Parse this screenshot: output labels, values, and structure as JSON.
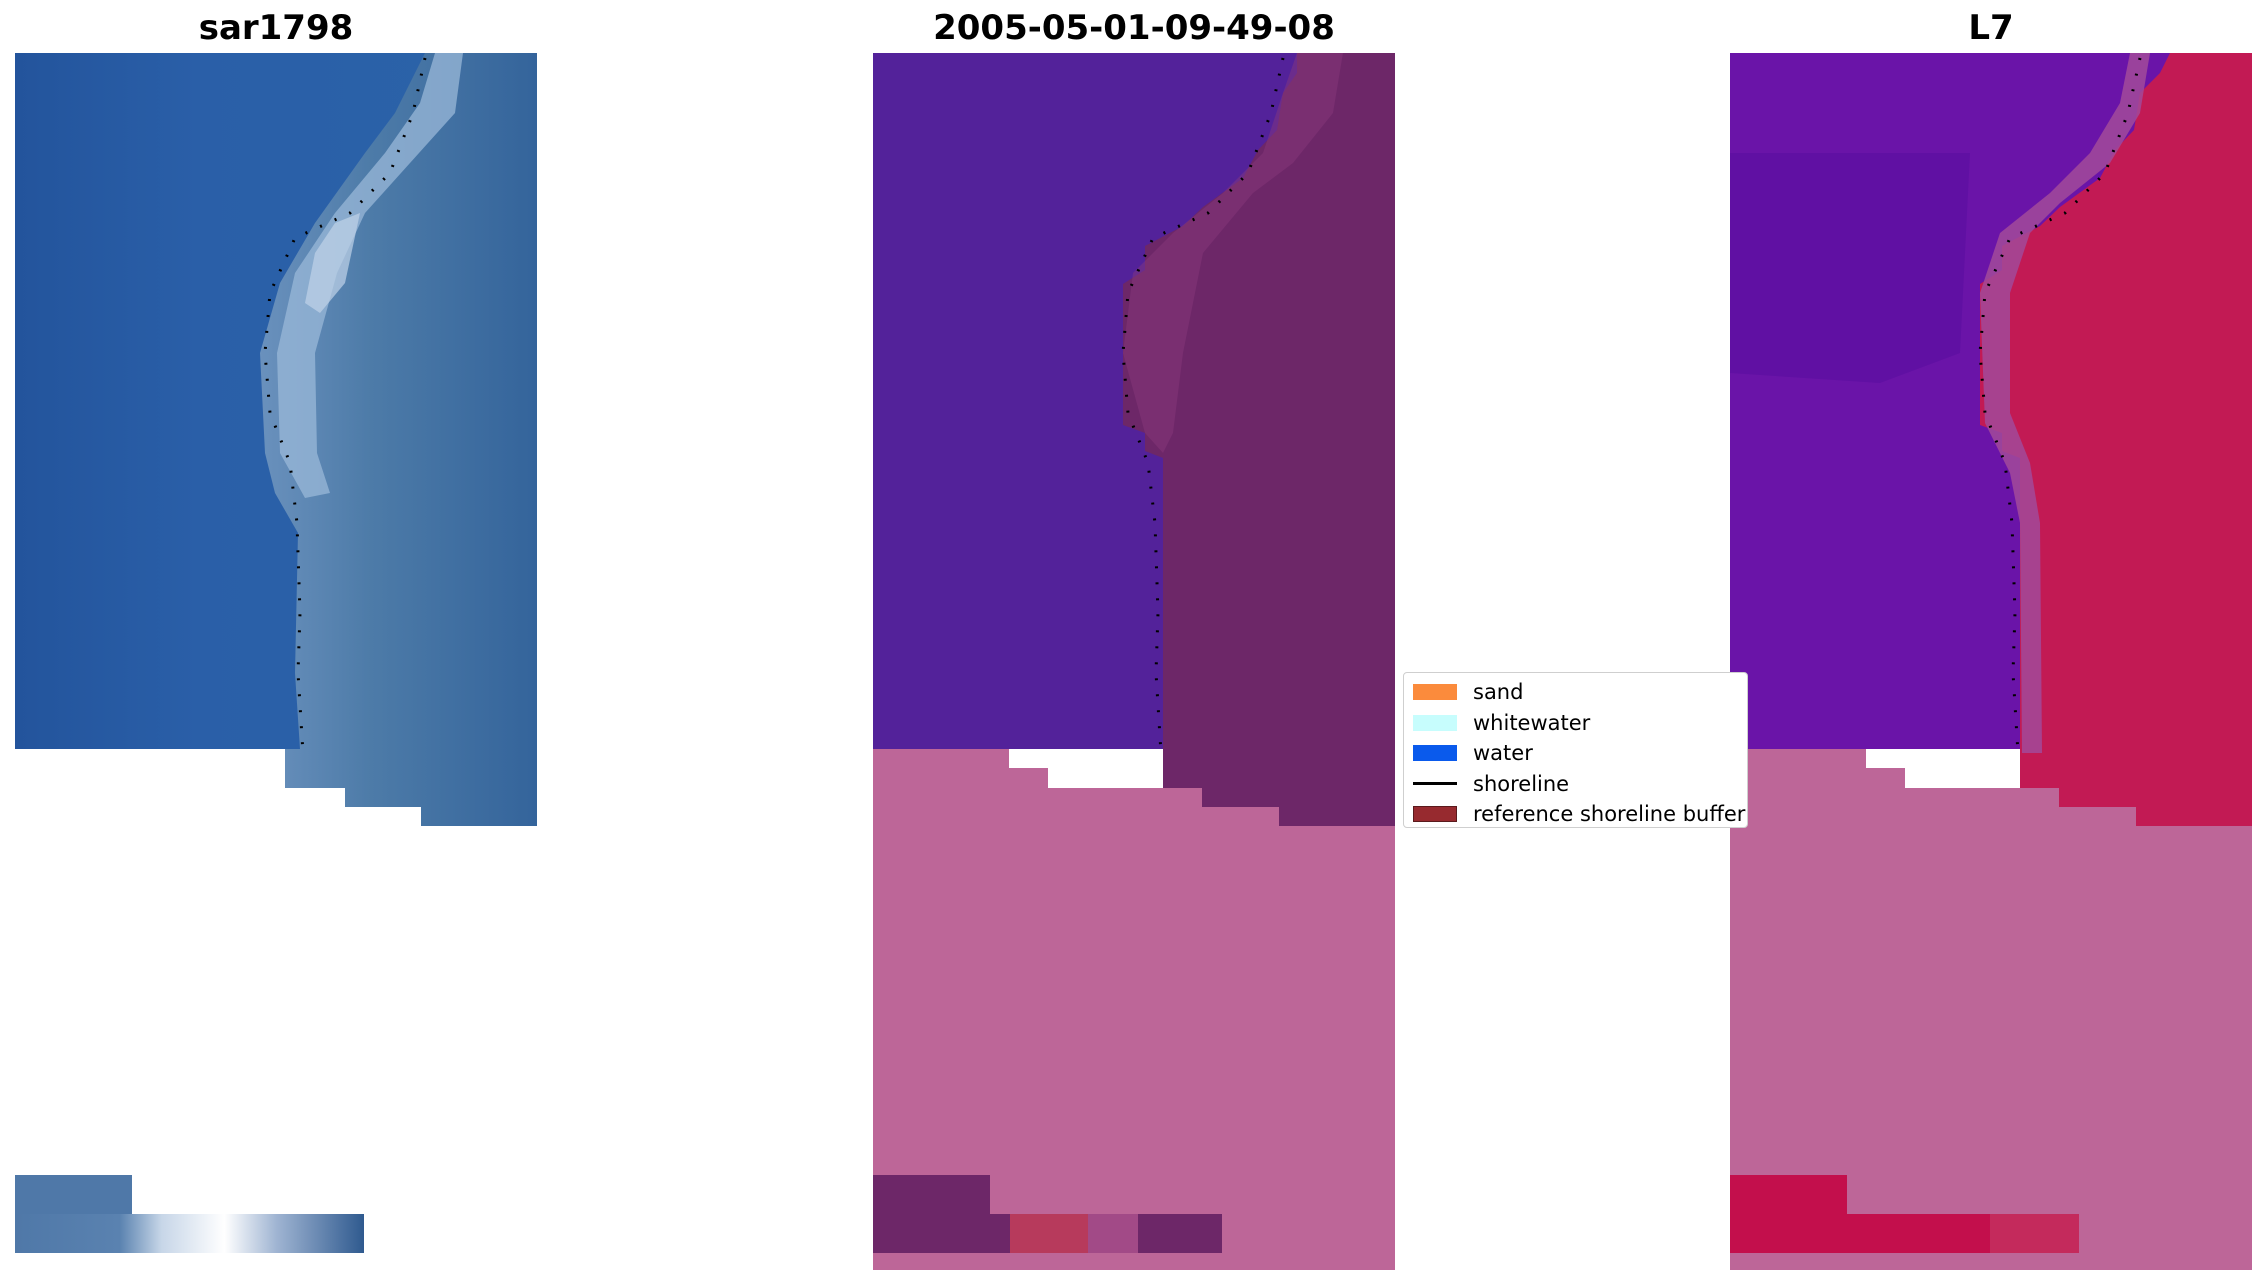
{
  "panels": [
    {
      "title": "sar1798"
    },
    {
      "title": "2005-05-01-09-49-08"
    },
    {
      "title": "L7"
    }
  ],
  "legend": {
    "items": [
      {
        "label": "sand",
        "kind": "patch",
        "color": "#fb8b3c"
      },
      {
        "label": "whitewater",
        "kind": "patch",
        "color": "#c7fdfd"
      },
      {
        "label": "water",
        "kind": "patch",
        "color": "#0a5aec"
      },
      {
        "label": "shoreline",
        "kind": "line",
        "color": "#000000"
      },
      {
        "label": "reference shoreline buffer",
        "kind": "patch",
        "color": "#972a2f"
      }
    ]
  },
  "colors": {
    "sar_water_deep": "#24519c",
    "sar_water": "#2c62a6",
    "sar_surf": "#8fb0d3",
    "sar_land": "#3d6e9c",
    "class_water": "#53229a",
    "class_buffer": "#6a2565",
    "class_nodata": "#bd6698",
    "l7_water": "#6a14a8",
    "l7_land": "#c21a54",
    "l7_nodata": "#bd6698"
  }
}
